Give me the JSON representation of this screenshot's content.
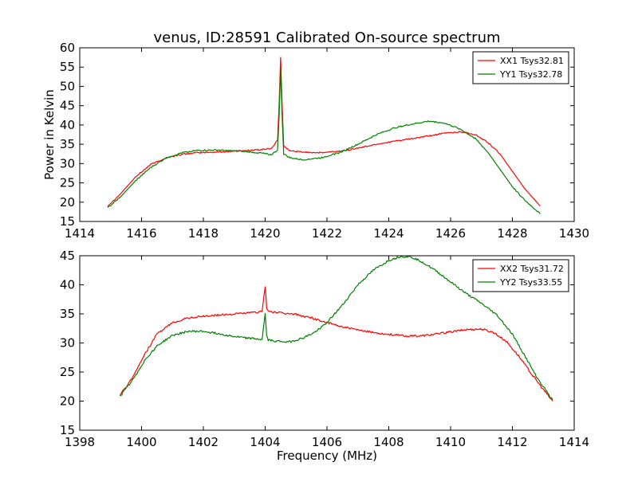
{
  "figure": {
    "title": "venus, ID:28591 Calibrated On-source spectrum"
  },
  "chart_data": [
    {
      "type": "line",
      "title": "venus, ID:28591 Calibrated On-source spectrum",
      "xlabel": "",
      "ylabel": "Power in Kelvin",
      "xlim": [
        1414,
        1430
      ],
      "ylim": [
        15,
        60
      ],
      "xticks": [
        1414,
        1416,
        1418,
        1420,
        1422,
        1424,
        1426,
        1428,
        1430
      ],
      "yticks": [
        15,
        20,
        25,
        30,
        35,
        40,
        45,
        50,
        55,
        60
      ],
      "legend_position": "top-right",
      "series": [
        {
          "name": "XX1 Tsys32.81",
          "color": "#ff0000",
          "x": [
            1414.9,
            1415.3,
            1415.8,
            1416.3,
            1416.8,
            1417.3,
            1417.8,
            1418.5,
            1419.2,
            1419.8,
            1420.2,
            1420.4,
            1420.45,
            1420.5,
            1420.55,
            1420.6,
            1420.8,
            1421.2,
            1421.8,
            1422.4,
            1423.0,
            1423.6,
            1424.2,
            1424.8,
            1425.4,
            1425.9,
            1426.4,
            1426.8,
            1427.2,
            1427.6,
            1428.0,
            1428.4,
            1428.9
          ],
          "y": [
            19.0,
            22.0,
            26.5,
            29.8,
            31.5,
            32.4,
            32.8,
            33.0,
            33.3,
            33.6,
            33.9,
            36.0,
            45.0,
            57.5,
            45.0,
            34.5,
            33.3,
            33.0,
            32.8,
            33.2,
            34.0,
            35.0,
            35.8,
            36.5,
            37.3,
            38.0,
            38.2,
            37.5,
            35.5,
            32.5,
            28.0,
            23.5,
            19.0
          ]
        },
        {
          "name": "YY1 Tsys32.78",
          "color": "#008000",
          "x": [
            1414.9,
            1415.3,
            1415.8,
            1416.3,
            1416.8,
            1417.3,
            1417.8,
            1418.5,
            1419.2,
            1419.8,
            1420.2,
            1420.4,
            1420.45,
            1420.5,
            1420.55,
            1420.6,
            1420.8,
            1421.2,
            1421.8,
            1422.4,
            1423.0,
            1423.6,
            1424.2,
            1424.8,
            1425.3,
            1425.8,
            1426.3,
            1426.8,
            1427.2,
            1427.6,
            1428.0,
            1428.4,
            1428.9
          ],
          "y": [
            18.5,
            21.2,
            25.5,
            29.0,
            31.5,
            32.8,
            33.4,
            33.5,
            33.2,
            32.8,
            32.3,
            33.5,
            42.0,
            54.5,
            42.0,
            32.5,
            31.5,
            31.0,
            31.5,
            32.8,
            35.0,
            37.5,
            39.3,
            40.3,
            41.0,
            40.5,
            39.0,
            36.5,
            33.0,
            28.5,
            24.0,
            20.5,
            17.0
          ]
        }
      ]
    },
    {
      "type": "line",
      "title": "",
      "xlabel": "Frequency (MHz)",
      "ylabel": "",
      "xlim": [
        1398,
        1414
      ],
      "ylim": [
        15,
        45
      ],
      "xticks": [
        1398,
        1400,
        1402,
        1404,
        1406,
        1408,
        1410,
        1412,
        1414
      ],
      "yticks": [
        15,
        20,
        25,
        30,
        35,
        40,
        45
      ],
      "legend_position": "top-right",
      "series": [
        {
          "name": "XX2 Tsys31.72",
          "color": "#ff0000",
          "x": [
            1399.3,
            1399.7,
            1400.1,
            1400.5,
            1401.0,
            1401.5,
            1402.0,
            1402.5,
            1403.0,
            1403.5,
            1403.9,
            1404.0,
            1404.05,
            1404.1,
            1404.3,
            1404.6,
            1405.0,
            1405.5,
            1406.0,
            1406.5,
            1407.0,
            1407.5,
            1408.0,
            1408.5,
            1409.0,
            1409.5,
            1410.0,
            1410.5,
            1411.0,
            1411.4,
            1411.8,
            1412.2,
            1412.6,
            1413.0,
            1413.3
          ],
          "y": [
            21.0,
            24.0,
            28.0,
            31.5,
            33.5,
            34.3,
            34.6,
            34.8,
            35.0,
            35.2,
            35.4,
            39.8,
            36.0,
            35.5,
            35.3,
            35.1,
            34.9,
            34.3,
            33.5,
            32.8,
            32.2,
            31.8,
            31.5,
            31.2,
            31.2,
            31.5,
            31.9,
            32.3,
            32.4,
            31.8,
            30.3,
            27.8,
            24.8,
            22.0,
            20.0
          ]
        },
        {
          "name": "YY2 Tsys33.55",
          "color": "#008000",
          "x": [
            1399.3,
            1399.7,
            1400.1,
            1400.5,
            1401.0,
            1401.5,
            1402.0,
            1402.5,
            1403.0,
            1403.5,
            1403.9,
            1404.0,
            1404.05,
            1404.1,
            1404.4,
            1404.8,
            1405.2,
            1405.6,
            1406.0,
            1406.5,
            1407.0,
            1407.5,
            1408.0,
            1408.4,
            1408.7,
            1409.0,
            1409.5,
            1410.0,
            1410.5,
            1411.0,
            1411.5,
            1412.0,
            1412.4,
            1412.8,
            1413.3
          ],
          "y": [
            20.8,
            23.5,
            27.0,
            29.5,
            31.3,
            32.0,
            32.0,
            31.6,
            31.1,
            30.8,
            30.6,
            35.0,
            31.2,
            30.5,
            30.3,
            30.2,
            30.8,
            31.8,
            33.5,
            36.5,
            40.0,
            42.5,
            44.2,
            44.9,
            44.8,
            44.2,
            42.5,
            40.5,
            38.5,
            36.8,
            34.8,
            31.5,
            27.8,
            24.0,
            20.2
          ]
        }
      ]
    }
  ]
}
